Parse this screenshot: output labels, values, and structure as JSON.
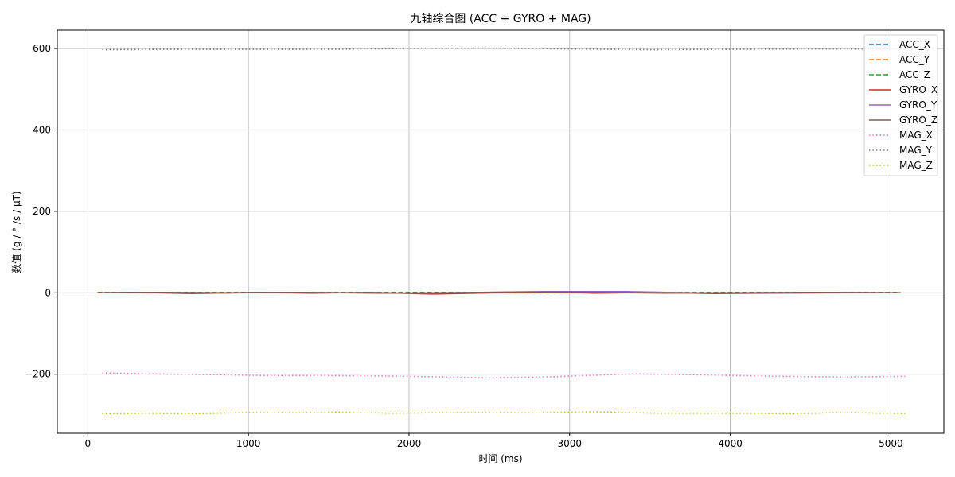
{
  "chart_data": {
    "type": "line",
    "title": "九轴综合图 (ACC + GYRO + MAG)",
    "xlabel": "时间 (ms)",
    "ylabel": "数值 (g / ° /s / μT)",
    "xlim": [
      -190,
      5330
    ],
    "ylim": [
      -345,
      645
    ],
    "xticks": [
      0,
      1000,
      2000,
      3000,
      4000,
      5000
    ],
    "yticks": [
      -200,
      0,
      200,
      400,
      600
    ],
    "grid": true,
    "legend_position": "top-right",
    "series": [
      {
        "name": "ACC_X",
        "color": "#1f77b4",
        "style": "dashed",
        "x": [
          60,
          500,
          1000,
          1500,
          2000,
          2500,
          3000,
          3500,
          4000,
          4500,
          5060
        ],
        "y": [
          1,
          1,
          1,
          1,
          1,
          1,
          1,
          1,
          1,
          1,
          1
        ]
      },
      {
        "name": "ACC_Y",
        "color": "#ff7f0e",
        "style": "dashed",
        "x": [
          60,
          500,
          1000,
          1500,
          2000,
          2500,
          3000,
          3500,
          4000,
          4500,
          5060
        ],
        "y": [
          0,
          0,
          0,
          0,
          0,
          0,
          0,
          0,
          0,
          0,
          0
        ]
      },
      {
        "name": "ACC_Z",
        "color": "#2ca02c",
        "style": "dashed",
        "x": [
          60,
          500,
          1000,
          1500,
          2000,
          2500,
          3000,
          3500,
          4000,
          4500,
          5060
        ],
        "y": [
          1,
          1,
          1,
          1,
          1,
          1,
          1,
          1,
          1,
          1,
          1
        ]
      },
      {
        "name": "GYRO_X",
        "color": "#d62728",
        "style": "solid",
        "x": [
          60,
          300,
          650,
          1050,
          1400,
          1750,
          2150,
          2550,
          2900,
          3150,
          3550,
          3900,
          4250,
          4650,
          5060
        ],
        "y": [
          0,
          1,
          -2,
          1,
          -1,
          1,
          -3,
          0,
          2,
          -1,
          1,
          -2,
          -1,
          0,
          0
        ]
      },
      {
        "name": "GYRO_Y",
        "color": "#9467bd",
        "style": "solid",
        "x": [
          60,
          400,
          800,
          1200,
          1650,
          2050,
          2450,
          2850,
          3350,
          3750,
          4150,
          4550,
          5060
        ],
        "y": [
          0,
          1,
          -1,
          1,
          0,
          -1,
          1,
          3,
          3,
          0,
          -1,
          1,
          0
        ]
      },
      {
        "name": "GYRO_Z",
        "color": "#8c564b",
        "style": "solid",
        "x": [
          60,
          450,
          900,
          1350,
          1800,
          2250,
          2700,
          3150,
          3600,
          4050,
          4500,
          5060
        ],
        "y": [
          0,
          1,
          0,
          1,
          -1,
          0,
          2,
          1,
          -1,
          0,
          1,
          0
        ]
      },
      {
        "name": "MAG_X",
        "color": "#e377c2",
        "style": "dotted",
        "x": [
          90,
          400,
          800,
          1100,
          1500,
          2000,
          2500,
          2900,
          3400,
          3900,
          4300,
          4700,
          5090
        ],
        "y": [
          -197,
          -199,
          -201,
          -203,
          -203,
          -205,
          -209,
          -206,
          -199,
          -202,
          -205,
          -207,
          -205
        ]
      },
      {
        "name": "MAG_Y",
        "color": "#7f7f7f",
        "style": "dotted",
        "x": [
          90,
          500,
          1000,
          1500,
          2000,
          2500,
          3000,
          3500,
          4000,
          4500,
          5090
        ],
        "y": [
          597,
          598,
          598,
          598,
          600,
          601,
          599,
          597,
          598,
          599,
          599
        ]
      },
      {
        "name": "MAG_Z",
        "color": "#bcbd22",
        "style": "dotted",
        "x": [
          90,
          350,
          700,
          1000,
          1300,
          1550,
          1900,
          2300,
          2750,
          3150,
          3550,
          4000,
          4400,
          4700,
          5090
        ],
        "y": [
          -297,
          -296,
          -297,
          -294,
          -295,
          -293,
          -296,
          -294,
          -295,
          -292,
          -296,
          -296,
          -297,
          -294,
          -297
        ]
      }
    ]
  }
}
